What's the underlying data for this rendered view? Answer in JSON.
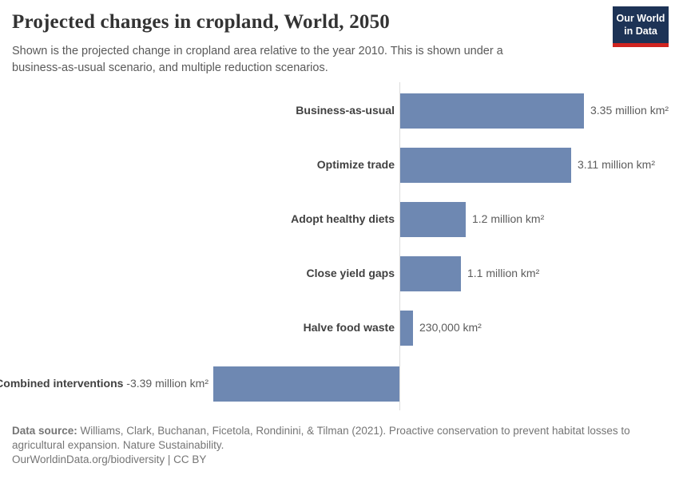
{
  "header": {
    "title": "Projected changes in cropland, World, 2050",
    "subtitle": "Shown is the projected change in cropland area relative to the year 2010. This is shown under a business-as-usual scenario, and multiple reduction scenarios.",
    "logo": {
      "line1": "Our World",
      "line2": "in Data",
      "bg_color": "#1d3356",
      "accent_color": "#cf2420"
    }
  },
  "chart_data": {
    "type": "bar",
    "orientation": "horizontal",
    "title": "Projected changes in cropland, World, 2050",
    "unit": "million km²",
    "categories": [
      "Business-as-usual",
      "Optimize trade",
      "Adopt healthy diets",
      "Close yield gaps",
      "Halve food waste",
      "Combined interventions"
    ],
    "values": [
      3.35,
      3.11,
      1.2,
      1.1,
      0.23,
      -3.39
    ],
    "value_labels": [
      "3.35 million km²",
      "3.11 million km²",
      "1.2 million km²",
      "1.1 million km²",
      "230,000 km²",
      "-3.39 million km²"
    ],
    "bar_color": "#6e88b2",
    "axis_color": "#dcdcdc",
    "xlim": [
      -3.39,
      3.35
    ],
    "baseline": 0,
    "grid": false,
    "legend": "none"
  },
  "footer": {
    "source_label": "Data source:",
    "source_text": " Williams, Clark, Buchanan, Ficetola, Rondinini, & Tilman (2021). Proactive conservation to prevent habitat losses to agricultural expansion. Nature Sustainability.",
    "license_text": "OurWorldinData.org/biodiversity | CC BY"
  }
}
